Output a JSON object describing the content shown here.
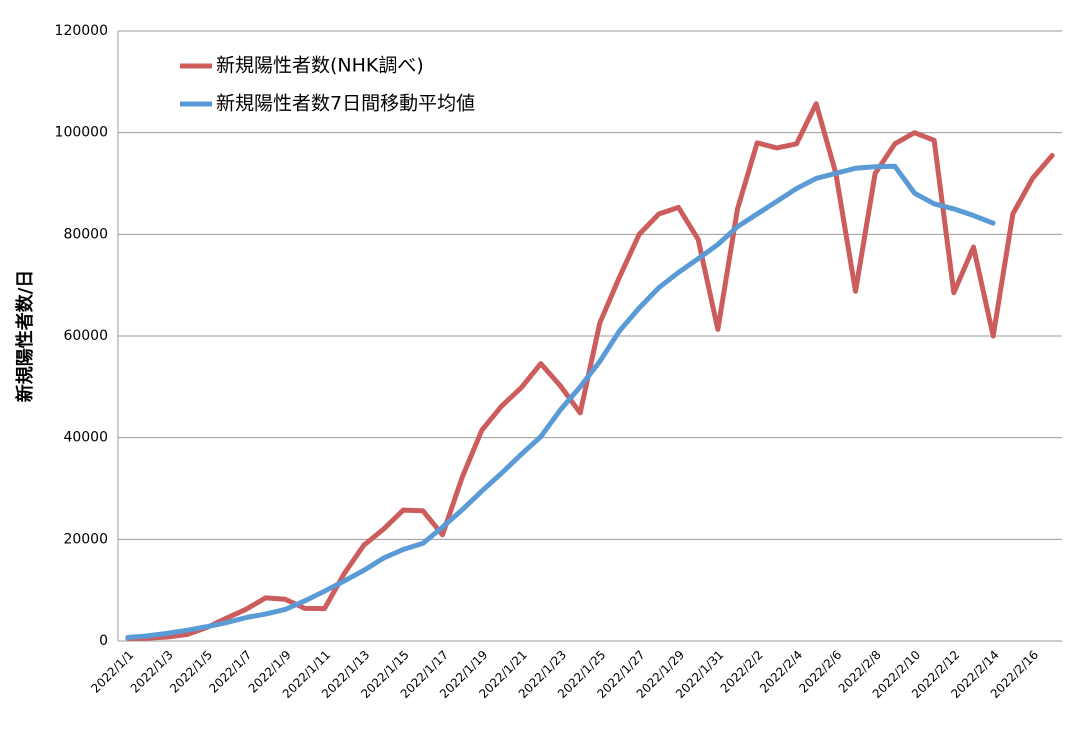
{
  "chart_data": {
    "type": "line",
    "ylabel": "新規陽性者数/日",
    "categories": [
      "2022/1/1",
      null,
      "2022/1/3",
      null,
      "2022/1/5",
      null,
      "2022/1/7",
      null,
      "2022/1/9",
      null,
      "2022/1/11",
      null,
      "2022/1/13",
      null,
      "2022/1/15",
      null,
      "2022/1/17",
      null,
      "2022/1/19",
      null,
      "2022/1/21",
      null,
      "2022/1/23",
      null,
      "2022/1/25",
      null,
      "2022/1/27",
      null,
      "2022/1/29",
      null,
      "2022/1/31",
      null,
      "2022/2/2",
      null,
      "2022/2/4",
      null,
      "2022/2/6",
      null,
      "2022/2/8",
      null,
      "2022/2/10",
      null,
      "2022/2/12",
      null,
      "2022/2/14",
      null,
      "2022/2/16",
      null
    ],
    "series": [
      {
        "name": "新規陽性者数(NHK調べ)",
        "color": "#cd5c5c",
        "values": [
          534,
          553,
          782,
          1266,
          2638,
          4475,
          6214,
          8474,
          8218,
          6425,
          6374,
          13244,
          18859,
          21998,
          25736,
          25634,
          20885,
          32191,
          41478,
          46192,
          49810,
          54570,
          50171,
          44869,
          62568,
          71600,
          80000,
          84000,
          85300,
          79000,
          61300,
          85000,
          98000,
          97000,
          97800,
          105700,
          92000,
          68800,
          92000,
          97800,
          100000,
          98500,
          68500,
          77500,
          60000,
          84000,
          91000,
          95500
        ]
      },
      {
        "name": "新規陽性者数7日間移動平均値",
        "color": "#5b9bd5",
        "values": [
          700,
          1000,
          1500,
          2100,
          2800,
          3600,
          4600,
          5300,
          6200,
          7900,
          9800,
          11800,
          13900,
          16300,
          18000,
          19200,
          22400,
          25800,
          29500,
          33000,
          36700,
          40200,
          45500,
          50000,
          55000,
          61000,
          65500,
          69500,
          72500,
          75200,
          78000,
          81500,
          84000,
          86500,
          89000,
          91000,
          92000,
          93000,
          93300,
          93400,
          88100,
          86000,
          85000,
          83700,
          82200,
          null,
          null,
          null
        ]
      }
    ],
    "ylim": [
      0,
      120000
    ],
    "yticks": [
      0,
      20000,
      40000,
      60000,
      80000,
      100000,
      120000
    ],
    "grid": true
  }
}
